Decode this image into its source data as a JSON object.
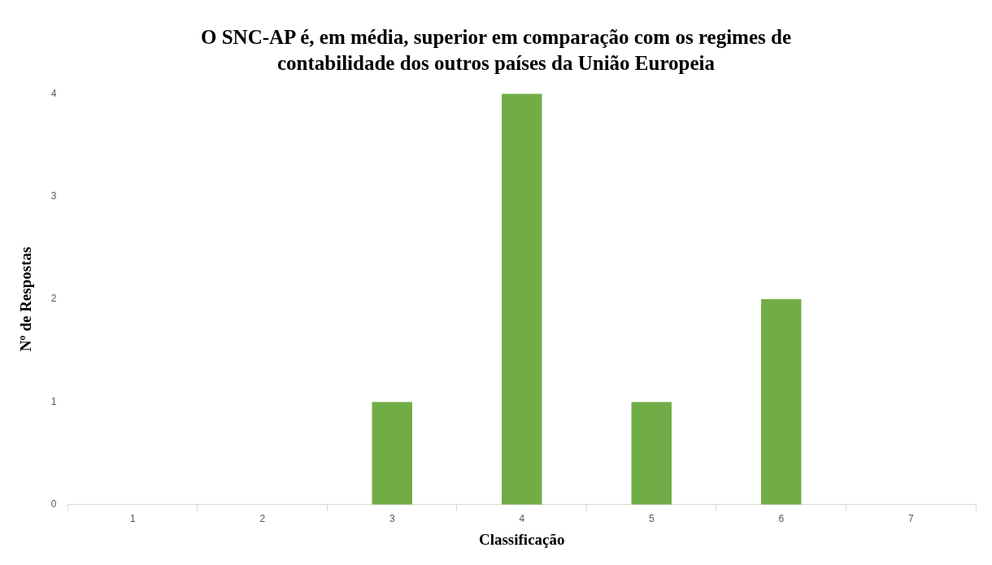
{
  "chart_data": {
    "type": "bar",
    "title": "O SNC-AP é, em média, superior em comparação com os regimes de contabilidade dos outros países da União Europeia",
    "xlabel": "Classificação",
    "ylabel": "Nº de Respostas",
    "categories": [
      "1",
      "2",
      "3",
      "4",
      "5",
      "6",
      "7"
    ],
    "values": [
      0,
      0,
      1,
      4,
      1,
      2,
      0
    ],
    "color": "#70ad47",
    "ylim": [
      0,
      4
    ],
    "yticks": [
      0,
      1,
      2,
      3,
      4
    ],
    "grid": false,
    "legend": false
  }
}
